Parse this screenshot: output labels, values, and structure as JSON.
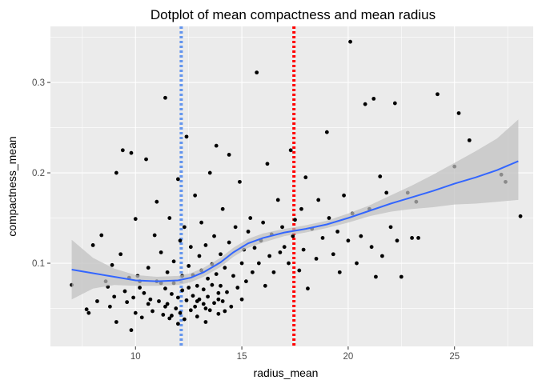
{
  "chart_data": {
    "type": "scatter",
    "title": "Dotplot of mean compactness and mean radius",
    "xlabel": "radius_mean",
    "ylabel": "compactness_mean",
    "xlim": [
      6.0,
      28.7
    ],
    "ylim": [
      0.008,
      0.362
    ],
    "x_ticks": [
      10,
      15,
      20,
      25
    ],
    "x_tick_labels": [
      "10",
      "15",
      "20",
      "25"
    ],
    "y_ticks": [
      0.1,
      0.2,
      0.3
    ],
    "y_tick_labels": [
      "0.1",
      "0.2",
      "0.3"
    ],
    "grid": true,
    "panel_background": "#ebebeb",
    "point_color": "#000000",
    "smooth_color": "#3366ff",
    "band_color": "#bfbfbf",
    "vlines": [
      {
        "x": 12.15,
        "color": "#6495ed",
        "style": "dotted"
      },
      {
        "x": 17.45,
        "color": "#ff0000",
        "style": "dotted"
      }
    ],
    "smooth_line": [
      [
        7.0,
        0.093
      ],
      [
        8.0,
        0.089
      ],
      [
        9.0,
        0.085
      ],
      [
        10.0,
        0.081
      ],
      [
        11.0,
        0.08
      ],
      [
        12.0,
        0.081
      ],
      [
        12.6,
        0.084
      ],
      [
        13.2,
        0.09
      ],
      [
        14.0,
        0.101
      ],
      [
        14.6,
        0.112
      ],
      [
        15.3,
        0.122
      ],
      [
        16.0,
        0.128
      ],
      [
        17.0,
        0.134
      ],
      [
        18.0,
        0.138
      ],
      [
        19.0,
        0.143
      ],
      [
        20.0,
        0.15
      ],
      [
        21.0,
        0.158
      ],
      [
        22.0,
        0.166
      ],
      [
        23.0,
        0.173
      ],
      [
        24.0,
        0.18
      ],
      [
        25.0,
        0.188
      ],
      [
        26.0,
        0.195
      ],
      [
        27.0,
        0.203
      ],
      [
        28.0,
        0.213
      ]
    ],
    "confidence_band": {
      "x": [
        7.0,
        8.0,
        9.0,
        10.0,
        11.0,
        12.0,
        12.6,
        13.2,
        14.0,
        14.6,
        15.3,
        16.0,
        17.0,
        18.0,
        19.0,
        20.0,
        21.0,
        22.0,
        23.0,
        24.0,
        25.0,
        26.0,
        27.0,
        28.0
      ],
      "upper": [
        0.126,
        0.106,
        0.094,
        0.087,
        0.085,
        0.086,
        0.089,
        0.095,
        0.106,
        0.117,
        0.127,
        0.133,
        0.138,
        0.142,
        0.147,
        0.155,
        0.164,
        0.175,
        0.186,
        0.198,
        0.211,
        0.224,
        0.238,
        0.259
      ],
      "lower": [
        0.06,
        0.072,
        0.076,
        0.075,
        0.075,
        0.076,
        0.079,
        0.085,
        0.096,
        0.107,
        0.117,
        0.123,
        0.13,
        0.134,
        0.139,
        0.145,
        0.152,
        0.157,
        0.16,
        0.162,
        0.165,
        0.166,
        0.168,
        0.17
      ]
    },
    "points": [
      [
        7.0,
        0.076
      ],
      [
        7.7,
        0.049
      ],
      [
        7.8,
        0.045
      ],
      [
        8.0,
        0.12
      ],
      [
        8.2,
        0.058
      ],
      [
        8.4,
        0.131
      ],
      [
        8.6,
        0.08
      ],
      [
        8.7,
        0.074
      ],
      [
        8.8,
        0.052
      ],
      [
        8.9,
        0.098
      ],
      [
        9.0,
        0.063
      ],
      [
        9.1,
        0.2
      ],
      [
        9.1,
        0.035
      ],
      [
        9.3,
        0.11
      ],
      [
        9.4,
        0.225
      ],
      [
        9.5,
        0.069
      ],
      [
        9.6,
        0.057
      ],
      [
        9.7,
        0.084
      ],
      [
        9.8,
        0.222
      ],
      [
        9.8,
        0.026
      ],
      [
        9.9,
        0.062
      ],
      [
        10.0,
        0.149
      ],
      [
        10.0,
        0.045
      ],
      [
        10.1,
        0.086
      ],
      [
        10.2,
        0.073
      ],
      [
        10.3,
        0.04
      ],
      [
        10.4,
        0.067
      ],
      [
        10.5,
        0.215
      ],
      [
        10.6,
        0.095
      ],
      [
        10.7,
        0.06
      ],
      [
        10.8,
        0.047
      ],
      [
        10.9,
        0.131
      ],
      [
        11.0,
        0.08
      ],
      [
        11.0,
        0.168
      ],
      [
        11.1,
        0.058
      ],
      [
        11.2,
        0.112
      ],
      [
        11.3,
        0.043
      ],
      [
        11.4,
        0.283
      ],
      [
        11.4,
        0.072
      ],
      [
        11.5,
        0.09
      ],
      [
        11.5,
        0.055
      ],
      [
        11.6,
        0.15
      ],
      [
        11.6,
        0.039
      ],
      [
        11.7,
        0.066
      ],
      [
        11.8,
        0.102
      ],
      [
        11.8,
        0.078
      ],
      [
        11.9,
        0.05
      ],
      [
        12.0,
        0.193
      ],
      [
        12.0,
        0.062
      ],
      [
        12.1,
        0.125
      ],
      [
        12.1,
        0.045
      ],
      [
        12.2,
        0.086
      ],
      [
        12.2,
        0.07
      ],
      [
        12.3,
        0.038
      ],
      [
        12.3,
        0.14
      ],
      [
        12.4,
        0.24
      ],
      [
        12.4,
        0.059
      ],
      [
        12.5,
        0.097
      ],
      [
        12.5,
        0.073
      ],
      [
        12.6,
        0.048
      ],
      [
        12.6,
        0.118
      ],
      [
        12.7,
        0.064
      ],
      [
        12.7,
        0.087
      ],
      [
        12.8,
        0.052
      ],
      [
        12.8,
        0.175
      ],
      [
        12.9,
        0.075
      ],
      [
        12.9,
        0.041
      ],
      [
        13.0,
        0.108
      ],
      [
        13.0,
        0.06
      ],
      [
        13.1,
        0.092
      ],
      [
        13.1,
        0.145
      ],
      [
        13.2,
        0.055
      ],
      [
        13.2,
        0.071
      ],
      [
        13.3,
        0.12
      ],
      [
        13.3,
        0.035
      ],
      [
        13.4,
        0.083
      ],
      [
        13.4,
        0.063
      ],
      [
        13.5,
        0.2
      ],
      [
        13.5,
        0.048
      ],
      [
        13.6,
        0.099
      ],
      [
        13.6,
        0.076
      ],
      [
        13.7,
        0.13
      ],
      [
        13.7,
        0.056
      ],
      [
        13.8,
        0.088
      ],
      [
        13.8,
        0.23
      ],
      [
        13.9,
        0.067
      ],
      [
        13.9,
        0.044
      ],
      [
        14.0,
        0.11
      ],
      [
        14.0,
        0.075
      ],
      [
        14.1,
        0.16
      ],
      [
        14.1,
        0.058
      ],
      [
        14.2,
        0.095
      ],
      [
        14.3,
        0.068
      ],
      [
        14.4,
        0.22
      ],
      [
        14.4,
        0.123
      ],
      [
        14.5,
        0.052
      ],
      [
        14.6,
        0.086
      ],
      [
        14.7,
        0.14
      ],
      [
        14.8,
        0.073
      ],
      [
        14.9,
        0.19
      ],
      [
        15.0,
        0.1
      ],
      [
        15.0,
        0.06
      ],
      [
        15.1,
        0.115
      ],
      [
        15.2,
        0.08
      ],
      [
        15.3,
        0.135
      ],
      [
        15.4,
        0.15
      ],
      [
        15.5,
        0.09
      ],
      [
        15.6,
        0.117
      ],
      [
        15.7,
        0.311
      ],
      [
        15.8,
        0.1
      ],
      [
        15.9,
        0.125
      ],
      [
        16.0,
        0.145
      ],
      [
        16.1,
        0.075
      ],
      [
        16.2,
        0.21
      ],
      [
        16.3,
        0.108
      ],
      [
        16.4,
        0.132
      ],
      [
        16.5,
        0.09
      ],
      [
        16.7,
        0.17
      ],
      [
        16.8,
        0.112
      ],
      [
        16.9,
        0.14
      ],
      [
        17.0,
        0.118
      ],
      [
        17.2,
        0.1
      ],
      [
        17.3,
        0.225
      ],
      [
        17.4,
        0.13
      ],
      [
        17.5,
        0.148
      ],
      [
        17.7,
        0.092
      ],
      [
        17.8,
        0.16
      ],
      [
        17.9,
        0.115
      ],
      [
        18.0,
        0.195
      ],
      [
        18.1,
        0.072
      ],
      [
        18.3,
        0.138
      ],
      [
        18.5,
        0.105
      ],
      [
        18.6,
        0.17
      ],
      [
        18.8,
        0.128
      ],
      [
        19.0,
        0.245
      ],
      [
        19.1,
        0.15
      ],
      [
        19.3,
        0.11
      ],
      [
        19.5,
        0.135
      ],
      [
        19.6,
        0.09
      ],
      [
        19.8,
        0.175
      ],
      [
        20.0,
        0.125
      ],
      [
        20.1,
        0.345
      ],
      [
        20.2,
        0.155
      ],
      [
        20.4,
        0.1
      ],
      [
        20.6,
        0.13
      ],
      [
        20.8,
        0.276
      ],
      [
        21.0,
        0.16
      ],
      [
        21.1,
        0.118
      ],
      [
        21.2,
        0.282
      ],
      [
        21.3,
        0.085
      ],
      [
        21.5,
        0.196
      ],
      [
        21.6,
        0.108
      ],
      [
        21.8,
        0.178
      ],
      [
        22.0,
        0.14
      ],
      [
        22.2,
        0.277
      ],
      [
        22.3,
        0.125
      ],
      [
        22.5,
        0.085
      ],
      [
        22.8,
        0.178
      ],
      [
        23.0,
        0.128
      ],
      [
        23.2,
        0.168
      ],
      [
        23.3,
        0.128
      ],
      [
        24.2,
        0.287
      ],
      [
        25.0,
        0.207
      ],
      [
        25.2,
        0.266
      ],
      [
        25.7,
        0.236
      ],
      [
        27.2,
        0.198
      ],
      [
        27.4,
        0.19
      ],
      [
        28.1,
        0.152
      ],
      [
        10.2,
        0.08
      ],
      [
        10.6,
        0.055
      ],
      [
        11.2,
        0.078
      ],
      [
        11.7,
        0.042
      ],
      [
        12.9,
        0.058
      ],
      [
        13.3,
        0.05
      ],
      [
        13.9,
        0.06
      ],
      [
        14.2,
        0.047
      ],
      [
        11.4,
        0.052
      ],
      [
        12.0,
        0.033
      ]
    ]
  }
}
